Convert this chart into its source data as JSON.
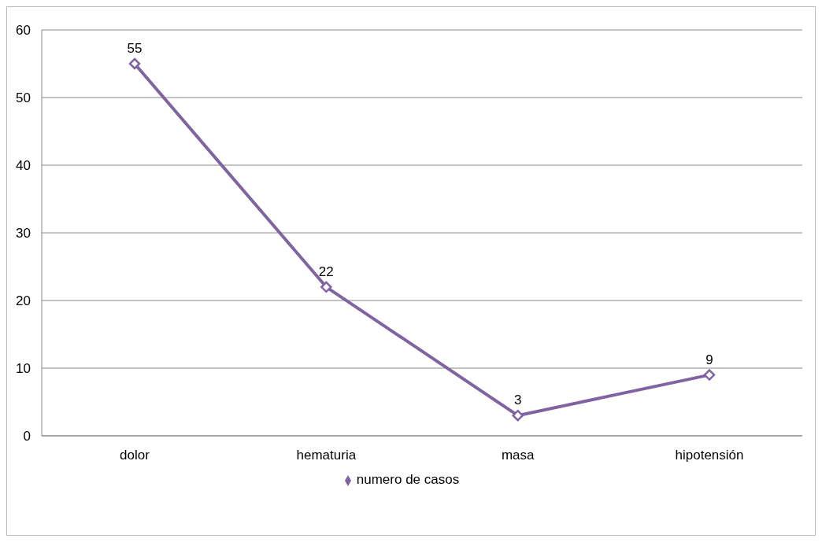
{
  "chart_data": {
    "type": "line",
    "categories": [
      "dolor",
      "hematuria",
      "masa",
      "hipotensión"
    ],
    "series": [
      {
        "name": "numero de casos",
        "color": "#8064a2",
        "values": [
          55,
          22,
          3,
          9
        ]
      }
    ],
    "ylim": [
      0,
      60
    ],
    "yticks": [
      0,
      10,
      20,
      30,
      40,
      50,
      60
    ],
    "grid": "y",
    "legend": "bottom",
    "marker": "diamond",
    "data_labels": true
  }
}
